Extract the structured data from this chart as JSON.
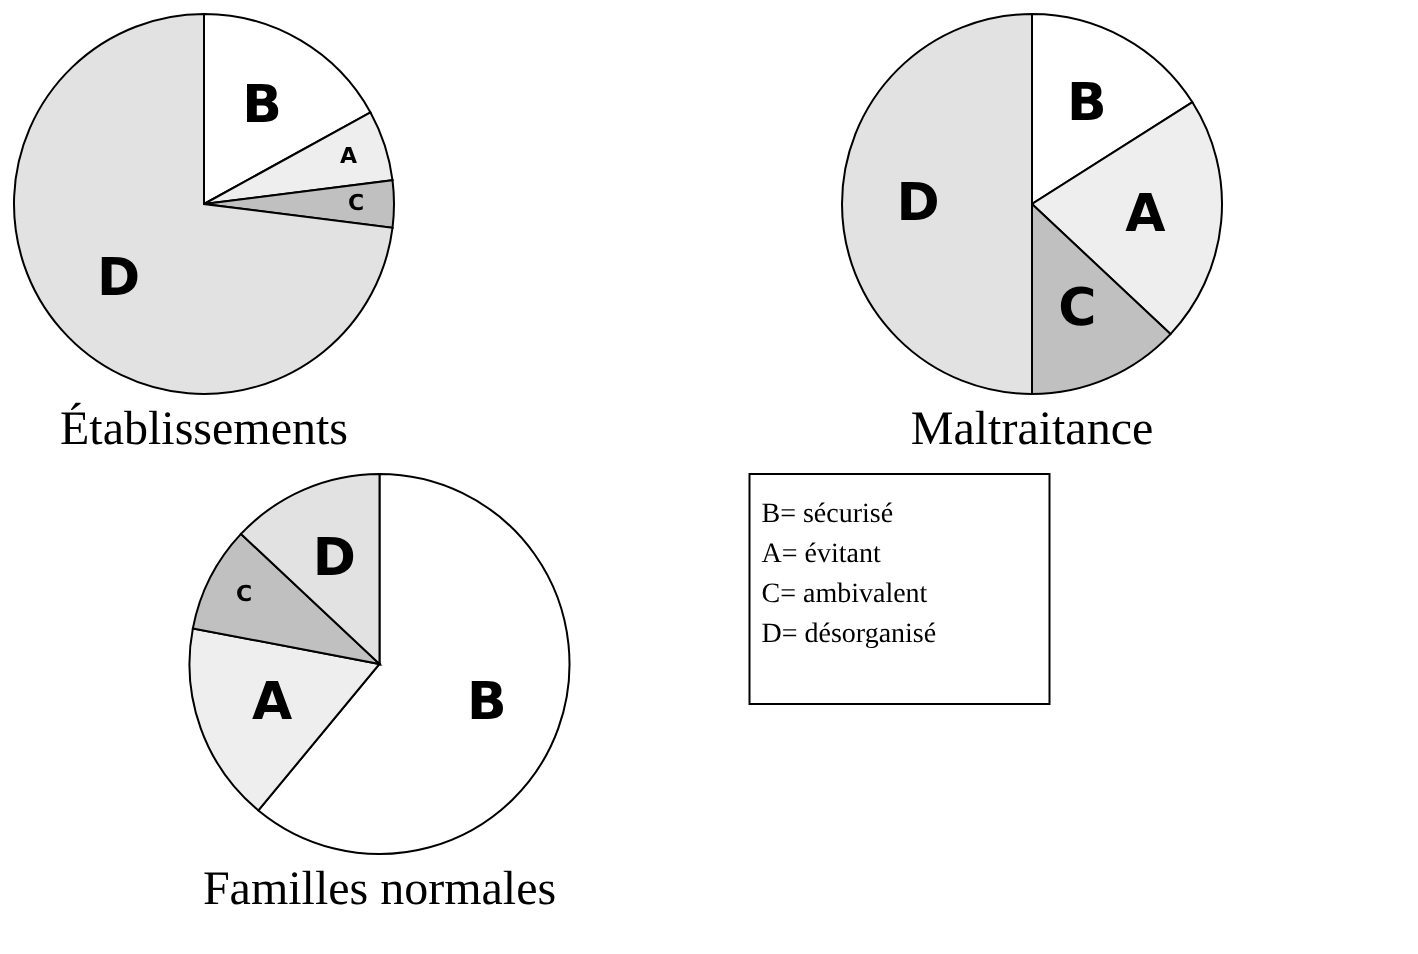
{
  "chart_data": [
    {
      "type": "pie",
      "title": "Établissements",
      "categories": [
        "B",
        "A",
        "C",
        "D"
      ],
      "values": [
        17,
        6,
        4,
        73
      ],
      "colors": [
        "#ffffff",
        "#eeeeee",
        "#c0c0c0",
        "#e2e2e2"
      ]
    },
    {
      "type": "pie",
      "title": "Maltraitance",
      "categories": [
        "B",
        "A",
        "C",
        "D"
      ],
      "values": [
        16,
        21,
        13,
        50
      ],
      "colors": [
        "#ffffff",
        "#eeeeee",
        "#c0c0c0",
        "#e2e2e2"
      ]
    },
    {
      "type": "pie",
      "title": "Familles normales",
      "categories": [
        "B",
        "A",
        "C",
        "D"
      ],
      "values": [
        61,
        17,
        9,
        13
      ],
      "colors": [
        "#ffffff",
        "#eeeeee",
        "#c0c0c0",
        "#e2e2e2"
      ],
      "annotations": [
        "B= sécurisé",
        "A= évitant",
        "C= ambivalent",
        "D= désorganisé"
      ]
    }
  ]
}
